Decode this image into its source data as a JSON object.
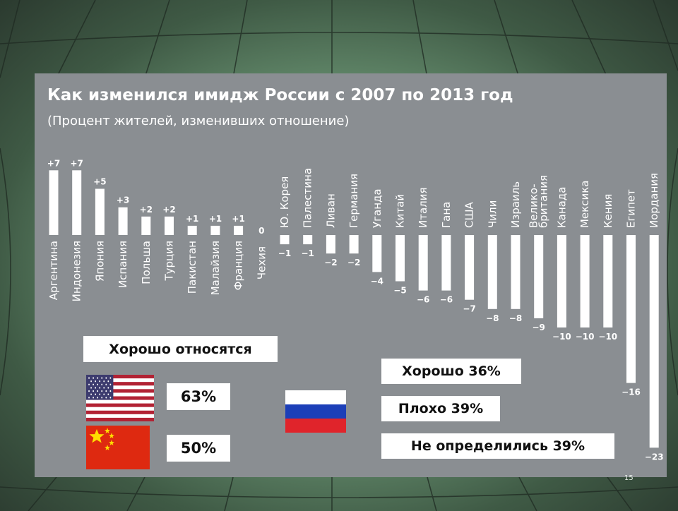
{
  "chart_data": {
    "type": "bar",
    "title": "Как изменился имидж России с 2007 по 2013 год",
    "subtitle": "(Процент жителей, изменивших отношение)",
    "categories": [
      "Аргентина",
      "Индонезия",
      "Япония",
      "Испания",
      "Польша",
      "Турция",
      "Пакистан",
      "Малайзия",
      "Франция",
      "Чехия",
      "Ю. Корея",
      "Палестина",
      "Ливан",
      "Германия",
      "Уганда",
      "Китай",
      "Италия",
      "Гана",
      "США",
      "Чили",
      "Израиль",
      "Велико-британия",
      "Канада",
      "Мексика",
      "Кения",
      "Египет",
      "Иордания"
    ],
    "values": [
      7,
      7,
      5,
      3,
      2,
      2,
      1,
      1,
      1,
      0,
      -1,
      -1,
      -2,
      -2,
      -4,
      -5,
      -6,
      -6,
      -7,
      -8,
      -8,
      -9,
      -10,
      -10,
      -10,
      -16,
      -23
    ],
    "value_labels": [
      "+7",
      "+7",
      "+5",
      "+3",
      "+2",
      "+2",
      "+1",
      "+1",
      "+1",
      "0",
      "−1",
      "−1",
      "−2",
      "−2",
      "−4",
      "−5",
      "−6",
      "−6",
      "−7",
      "−8",
      "−8",
      "−9",
      "−10",
      "−10",
      "−10",
      "−16",
      "−23"
    ],
    "bar_color": "#ffffff",
    "background_color": "#8a8e92",
    "grid": false,
    "legend": "none"
  },
  "labels": {
    "good_attitude": "Хорошо относятся",
    "us_percent": "63%",
    "china_percent": "50%",
    "good": "Хорошо 36%",
    "bad": "Плохо 39%",
    "undecided": "Не определились 39%"
  },
  "flags": {
    "us": "us-flag-icon",
    "china": "china-flag-icon",
    "russia": "russia-flag-icon"
  },
  "slide_number": "15"
}
